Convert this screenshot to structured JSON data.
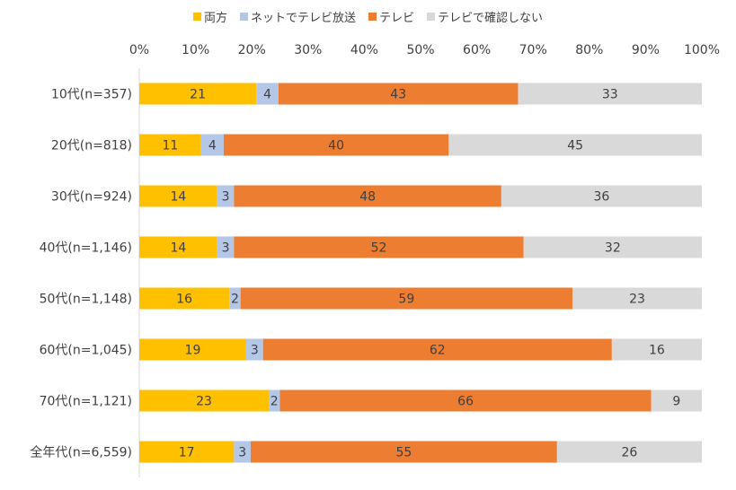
{
  "chart_data": {
    "type": "bar",
    "orientation": "horizontal",
    "stacked": "percent",
    "categories": [
      "10代(n=357)",
      "20代(n=818)",
      "30代(n=924)",
      "40代(n=1,146)",
      "50代(n=1,148)",
      "60代(n=1,045)",
      "70代(n=1,121)",
      "全年代(n=6,559)"
    ],
    "series": [
      {
        "name": "両方",
        "color": "#FFC000",
        "values": [
          21,
          11,
          14,
          14,
          16,
          19,
          23,
          17
        ]
      },
      {
        "name": "ネットでテレビ放送",
        "color": "#B4C7E7",
        "values": [
          4,
          4,
          3,
          3,
          2,
          3,
          2,
          3
        ]
      },
      {
        "name": "テレビ",
        "color": "#ED7D31",
        "values": [
          43,
          40,
          48,
          52,
          59,
          62,
          66,
          55
        ]
      },
      {
        "name": "テレビで確認しない",
        "color": "#D9D9D9",
        "values": [
          33,
          45,
          36,
          32,
          23,
          16,
          9,
          26
        ]
      }
    ],
    "x_ticks": [
      "0%",
      "10%",
      "20%",
      "30%",
      "40%",
      "50%",
      "60%",
      "70%",
      "80%",
      "90%",
      "100%"
    ],
    "xlim": [
      0,
      100
    ],
    "legend": "top",
    "grid": false
  }
}
